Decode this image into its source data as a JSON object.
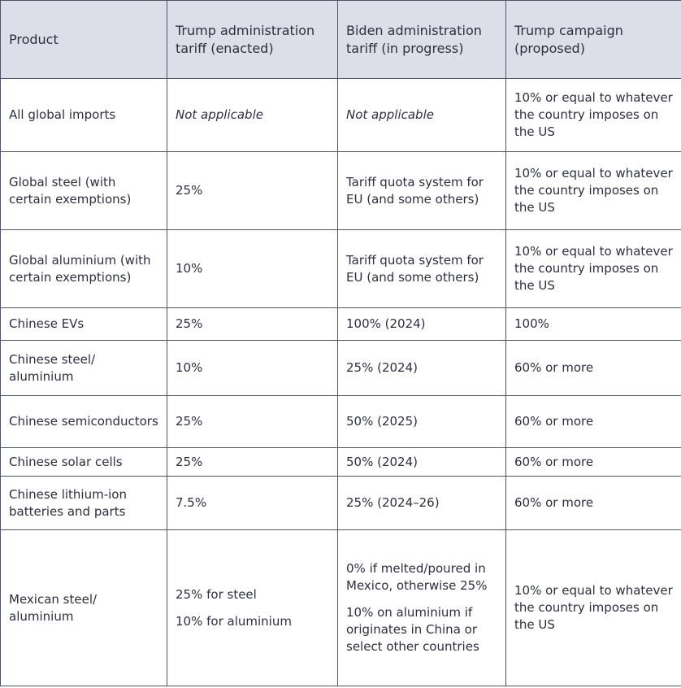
{
  "table": {
    "header": [
      "Product",
      "Trump administration tariff (enacted)",
      "Biden administration tariff (in progress)",
      "Trump campaign (proposed)"
    ],
    "rows": [
      [
        "All global imports",
        "Not applicable",
        "Not applicable",
        "10% or equal to whatever the country imposes on the US"
      ],
      [
        "Global steel (with certain exemptions)",
        "25%",
        "Tariff quota system for EU (and some others)",
        "10% or equal to whatever the country imposes on the US"
      ],
      [
        "Global aluminium (with certain exemptions)",
        "10%",
        "Tariff quota system for EU (and some others)",
        "10% or equal to whatever the country imposes on the US"
      ],
      [
        "Chinese EVs",
        "25%",
        "100% (2024)",
        "100%"
      ],
      [
        "Chinese steel/ aluminium",
        "10%",
        "25% (2024)",
        "60% or more"
      ],
      [
        "Chinese semiconductors",
        "25%",
        "50% (2025)",
        "60% or more"
      ],
      [
        "Chinese solar cells",
        "25%",
        "50% (2024)",
        "60% or more"
      ],
      [
        "Chinese lithium-ion batteries and parts",
        "7.5%",
        "25% (2024–26)",
        "60% or more"
      ],
      [
        "Mexican steel/ aluminium",
        [
          "25% for steel",
          "10% for aluminium"
        ],
        [
          "0% if melted/poured in Mexico, otherwise 25%",
          "10% on aluminium if originates in China or select other countries"
        ],
        "10% or equal to whatever the country imposes on the US"
      ]
    ]
  }
}
